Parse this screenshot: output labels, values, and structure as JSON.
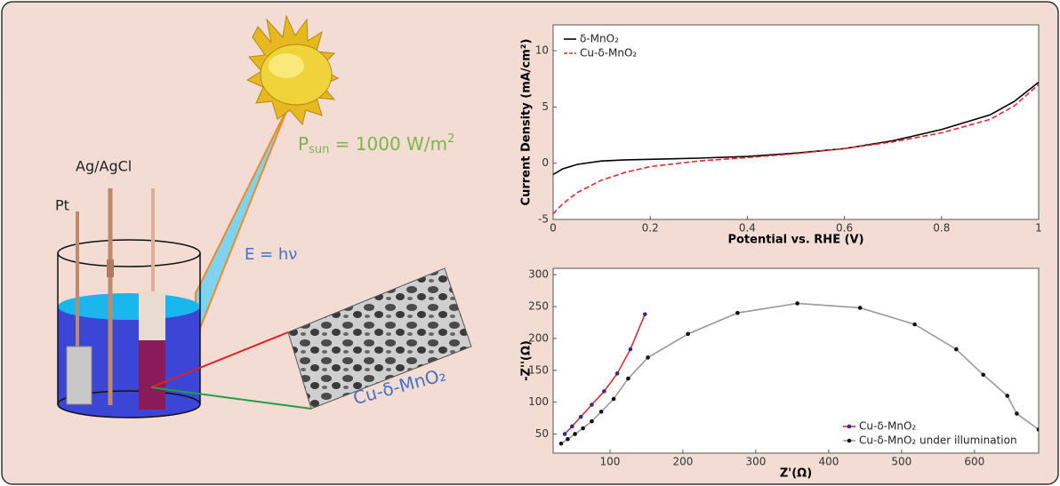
{
  "diagram": {
    "labels": {
      "pt": "Pt",
      "ref": "Ag/AgCl",
      "energy": "E = hν",
      "sample": "Cu-δ-MnO₂"
    },
    "sun_label": {
      "p": "P",
      "sub": "sun",
      "rest": " = 1000 W/m",
      "sup": "2"
    }
  },
  "chart_data": [
    {
      "type": "line",
      "xlabel": "Potential vs. RHE (V)",
      "ylabel": "Current Density (mA/cm²)",
      "x": [
        0,
        0.02,
        0.05,
        0.1,
        0.15,
        0.2,
        0.3,
        0.4,
        0.5,
        0.6,
        0.7,
        0.8,
        0.9,
        0.95,
        1
      ],
      "series": [
        {
          "name": "δ-MnO₂",
          "color": "#000000",
          "dashed": false,
          "values": [
            -1,
            -0.5,
            -0.1,
            0.2,
            0.3,
            0.35,
            0.45,
            0.6,
            0.9,
            1.3,
            2.0,
            3.0,
            4.3,
            5.5,
            7.2
          ]
        },
        {
          "name": "Cu-δ-MnO₂",
          "color": "#e32a2a",
          "dashed": true,
          "values": [
            -4.5,
            -3.6,
            -2.6,
            -1.5,
            -0.8,
            -0.3,
            0.2,
            0.5,
            0.85,
            1.3,
            1.9,
            2.7,
            3.9,
            5.1,
            7.0
          ]
        }
      ],
      "xlim": [
        0,
        1
      ],
      "xticks": [
        0,
        0.2,
        0.4,
        0.6,
        0.8,
        1
      ],
      "ylim": [
        -5,
        12.3
      ],
      "yticks": [
        -5,
        0,
        5,
        10
      ],
      "legend": "top-left",
      "markers": false
    },
    {
      "type": "scatter-line",
      "xlabel": "Z'(Ω)",
      "ylabel": "-Z''(Ω)",
      "series": [
        {
          "name": "Cu-δ-MnO₂",
          "color": "#e32a2a",
          "x": [
            38,
            48,
            60,
            75,
            92,
            110,
            128,
            148
          ],
          "values": [
            50,
            62,
            77,
            96,
            117,
            145,
            183,
            238
          ]
        },
        {
          "name": "Cu-δ-MnO₂ under illumination",
          "color": "#999999",
          "x": [
            33,
            42,
            52,
            63,
            75,
            88,
            105,
            125,
            152,
            207,
            275,
            357,
            443,
            518,
            575,
            612,
            645,
            658,
            688
          ],
          "values": [
            35,
            42,
            50,
            59,
            70,
            85,
            105,
            137,
            170,
            207,
            240,
            255,
            248,
            222,
            183,
            143,
            110,
            82,
            57
          ]
        }
      ],
      "xlim": [
        22,
        688
      ],
      "xticks": [
        100,
        200,
        300,
        400,
        500,
        600
      ],
      "ylim": [
        20,
        310
      ],
      "yticks": [
        50,
        100,
        150,
        200,
        250,
        300
      ],
      "legend": "bottom-right",
      "markers": true
    }
  ]
}
